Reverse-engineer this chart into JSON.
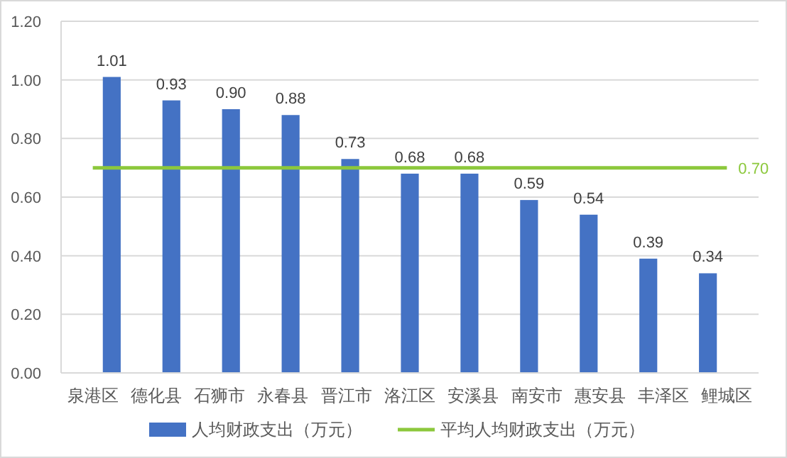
{
  "chart_data": {
    "type": "bar",
    "categories": [
      "泉港区",
      "德化县",
      "石狮市",
      "永春县",
      "晋江市",
      "洛江区",
      "安溪县",
      "南安市",
      "惠安县",
      "丰泽区",
      "鲤城区"
    ],
    "series": [
      {
        "name": "人均财政支出（万元）",
        "color": "#4472c4",
        "values": [
          1.01,
          0.93,
          0.9,
          0.88,
          0.73,
          0.68,
          0.68,
          0.59,
          0.54,
          0.39,
          0.34
        ],
        "value_labels": [
          "1.01",
          "0.93",
          "0.90",
          "0.88",
          "0.73",
          "0.68",
          "0.68",
          "0.59",
          "0.54",
          "0.39",
          "0.34"
        ]
      },
      {
        "name": "平均人均财政支出（万元）",
        "type": "line",
        "color": "#8cc83c",
        "values": [
          0.7,
          0.7,
          0.7,
          0.7,
          0.7,
          0.7,
          0.7,
          0.7,
          0.7,
          0.7,
          0.7
        ],
        "value_labels": [
          null,
          null,
          null,
          null,
          null,
          null,
          null,
          null,
          null,
          null,
          "0.70"
        ]
      }
    ],
    "ylim": [
      0,
      1.2
    ],
    "yticks": [
      {
        "value": 0,
        "label": "0.00"
      },
      {
        "value": 0.2,
        "label": "0.20"
      },
      {
        "value": 0.4,
        "label": "0.40"
      },
      {
        "value": 0.6,
        "label": "0.60"
      },
      {
        "value": 0.8,
        "label": "0.80"
      },
      {
        "value": 1.0,
        "label": "1.00"
      },
      {
        "value": 1.2,
        "label": "1.20"
      }
    ],
    "grid": "y",
    "legend": "bottom",
    "marker": "none"
  }
}
